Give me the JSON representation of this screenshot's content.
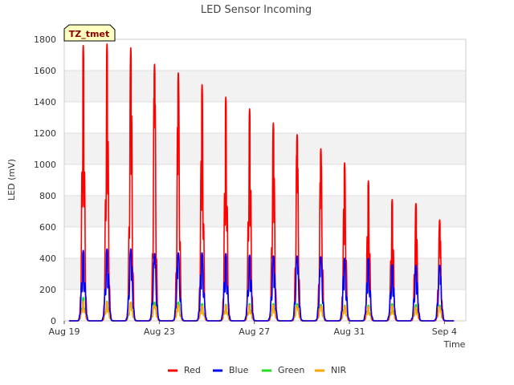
{
  "chart_data": {
    "type": "line",
    "title": "LED Sensor Incoming",
    "xlabel": "Time",
    "ylabel": "LED (mV)",
    "badge": "TZ_tmet",
    "ylim": [
      0,
      1800
    ],
    "xlim_days": [
      0,
      16.9
    ],
    "y_ticks": [
      0,
      200,
      400,
      600,
      800,
      1000,
      1200,
      1400,
      1600,
      1800
    ],
    "x_ticks": [
      {
        "label": "Aug 19",
        "day": 0
      },
      {
        "label": "Aug 23",
        "day": 4
      },
      {
        "label": "Aug 27",
        "day": 8
      },
      {
        "label": "Aug 31",
        "day": 12
      },
      {
        "label": "Sep 4",
        "day": 16
      }
    ],
    "peak_days": [
      0.8,
      1.8,
      2.8,
      3.8,
      4.8,
      5.8,
      6.8,
      7.8,
      8.8,
      9.8,
      10.8,
      11.8,
      12.8,
      13.8,
      14.8,
      15.8
    ],
    "series": [
      {
        "name": "Red",
        "color": "#ff0000",
        "peaks": [
          1760,
          1770,
          1745,
          1640,
          1585,
          1510,
          1430,
          1355,
          1265,
          1190,
          1100,
          1010,
          895,
          775,
          750,
          645
        ]
      },
      {
        "name": "Blue",
        "color": "#0000ff",
        "peaks": [
          450,
          460,
          460,
          430,
          435,
          435,
          430,
          420,
          415,
          415,
          410,
          400,
          400,
          360,
          355,
          355
        ]
      },
      {
        "name": "Green",
        "color": "#22dd22",
        "peaks": [
          150,
          125,
          120,
          120,
          120,
          110,
          105,
          110,
          110,
          110,
          105,
          100,
          100,
          110,
          105,
          100
        ]
      },
      {
        "name": "NIR",
        "color": "#ffa500",
        "peaks": [
          125,
          120,
          120,
          100,
          100,
          95,
          100,
          100,
          100,
          95,
          95,
          95,
          90,
          95,
          85,
          90
        ]
      }
    ]
  }
}
